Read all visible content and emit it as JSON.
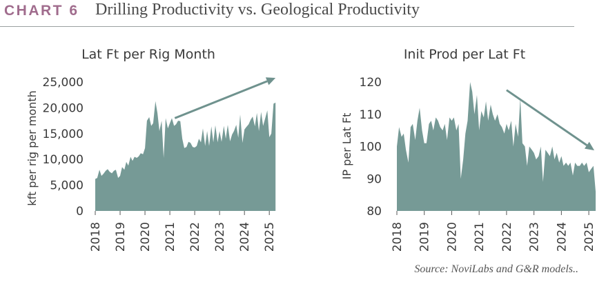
{
  "header": {
    "label": "CHART 6",
    "title": "Drilling Productivity vs. Geological Productivity"
  },
  "source": "Source: NoviLabs and G&R models..",
  "colors": {
    "fill": "#769a96",
    "arrow": "#6f928e",
    "accent": "#a06c8d"
  },
  "chart_data": [
    {
      "type": "area",
      "title": "Lat Ft per Rig Month",
      "ylabel": "kft per rig per month",
      "xlabel": "",
      "ylim": [
        0,
        25000
      ],
      "yticks": [
        0,
        5000,
        10000,
        15000,
        20000,
        25000
      ],
      "ytick_labels": [
        "0",
        "5,000",
        "10,000",
        "15,000",
        "20,000",
        "25,000"
      ],
      "xlim": [
        2018,
        2025.3
      ],
      "xticks": [
        "2018",
        "2019",
        "2020",
        "2021",
        "2022",
        "2023",
        "2024",
        "2025"
      ],
      "trend_arrow": {
        "from": [
          2021.2,
          18000
        ],
        "to": [
          2025.25,
          25800
        ]
      },
      "series": [
        {
          "name": "Lat Ft per Rig Month",
          "x": [
            2018.0,
            2018.08,
            2018.17,
            2018.25,
            2018.33,
            2018.42,
            2018.5,
            2018.58,
            2018.67,
            2018.75,
            2018.83,
            2018.92,
            2019.0,
            2019.08,
            2019.17,
            2019.25,
            2019.33,
            2019.42,
            2019.5,
            2019.58,
            2019.67,
            2019.75,
            2019.83,
            2019.92,
            2020.0,
            2020.08,
            2020.17,
            2020.25,
            2020.33,
            2020.42,
            2020.5,
            2020.58,
            2020.67,
            2020.75,
            2020.83,
            2020.92,
            2021.0,
            2021.08,
            2021.17,
            2021.25,
            2021.33,
            2021.42,
            2021.5,
            2021.58,
            2021.67,
            2021.75,
            2021.83,
            2021.92,
            2022.0,
            2022.08,
            2022.17,
            2022.25,
            2022.33,
            2022.42,
            2022.5,
            2022.58,
            2022.67,
            2022.75,
            2022.83,
            2022.92,
            2023.0,
            2023.08,
            2023.17,
            2023.25,
            2023.33,
            2023.42,
            2023.5,
            2023.58,
            2023.67,
            2023.75,
            2023.83,
            2023.92,
            2024.0,
            2024.08,
            2024.17,
            2024.25,
            2024.33,
            2024.42,
            2024.5,
            2024.58,
            2024.67,
            2024.75,
            2024.83,
            2024.92,
            2025.0,
            2025.08,
            2025.17,
            2025.25
          ],
          "values": [
            6200,
            6400,
            8000,
            6800,
            7200,
            7800,
            8100,
            7600,
            7300,
            7800,
            8000,
            6400,
            6800,
            8500,
            8000,
            9500,
            8800,
            10500,
            9700,
            10500,
            10300,
            10600,
            11200,
            11000,
            12200,
            17500,
            18200,
            16500,
            17000,
            21300,
            19000,
            15500,
            17500,
            10300,
            18000,
            16000,
            17000,
            18000,
            16500,
            16800,
            17500,
            17400,
            14000,
            12200,
            12400,
            13400,
            13200,
            12400,
            12300,
            12600,
            14000,
            13300,
            16000,
            12600,
            15500,
            12600,
            16400,
            13300,
            16600,
            13300,
            15500,
            13400,
            16500,
            14000,
            16700,
            13500,
            14800,
            15500,
            16700,
            14200,
            18700,
            13200,
            15800,
            16300,
            16800,
            17700,
            18300,
            16400,
            19000,
            15500,
            19200,
            16500,
            17900,
            19500,
            14300,
            15000,
            20800,
            21000
          ]
        }
      ]
    },
    {
      "type": "area",
      "title": "Init Prod per Lat Ft",
      "ylabel": "IP per Lat Ft",
      "xlabel": "",
      "ylim": [
        80,
        120
      ],
      "yticks": [
        80,
        90,
        100,
        110,
        120
      ],
      "ytick_labels": [
        "80",
        "90",
        "100",
        "110",
        "120"
      ],
      "xlim": [
        2018,
        2025.3
      ],
      "xticks": [
        "2018",
        "2019",
        "2020",
        "2021",
        "2022",
        "2023",
        "2024",
        "2025"
      ],
      "trend_arrow": {
        "from": [
          2022.0,
          117.5
        ],
        "to": [
          2025.2,
          98.8
        ]
      },
      "series": [
        {
          "name": "Init Prod per Lat Ft",
          "x": [
            2018.0,
            2018.08,
            2018.17,
            2018.25,
            2018.33,
            2018.42,
            2018.5,
            2018.58,
            2018.67,
            2018.75,
            2018.83,
            2018.92,
            2019.0,
            2019.08,
            2019.17,
            2019.25,
            2019.33,
            2019.42,
            2019.5,
            2019.58,
            2019.67,
            2019.75,
            2019.83,
            2019.92,
            2020.0,
            2020.08,
            2020.17,
            2020.25,
            2020.33,
            2020.42,
            2020.5,
            2020.58,
            2020.67,
            2020.75,
            2020.83,
            2020.92,
            2021.0,
            2021.08,
            2021.17,
            2021.25,
            2021.33,
            2021.42,
            2021.5,
            2021.58,
            2021.67,
            2021.75,
            2021.83,
            2021.92,
            2022.0,
            2022.08,
            2022.17,
            2022.25,
            2022.33,
            2022.42,
            2022.5,
            2022.58,
            2022.67,
            2022.75,
            2022.83,
            2022.92,
            2023.0,
            2023.08,
            2023.17,
            2023.25,
            2023.33,
            2023.42,
            2023.5,
            2023.58,
            2023.67,
            2023.75,
            2023.83,
            2023.92,
            2024.0,
            2024.08,
            2024.17,
            2024.25,
            2024.33,
            2024.42,
            2024.5,
            2024.58,
            2024.67,
            2024.75,
            2024.83,
            2024.92,
            2025.0,
            2025.08,
            2025.17,
            2025.25
          ],
          "values": [
            100,
            106,
            103,
            104,
            99,
            95,
            106,
            107,
            102,
            108,
            112,
            105,
            101,
            101,
            107,
            108,
            105,
            109,
            108,
            106,
            105,
            107,
            102,
            109,
            108,
            109,
            105,
            107,
            90,
            96,
            104,
            108,
            120,
            117,
            110,
            116,
            105,
            111,
            109,
            114,
            108,
            113,
            110,
            108,
            110,
            107,
            106,
            104,
            107,
            105,
            108,
            100,
            107,
            103,
            115,
            101,
            100,
            94,
            100,
            99,
            98,
            96,
            97,
            100,
            89,
            99,
            98,
            97,
            100,
            96,
            98,
            95,
            97,
            94,
            95,
            94,
            95,
            91,
            95,
            94,
            94,
            95,
            94,
            95,
            92,
            93,
            94,
            86
          ]
        }
      ]
    }
  ]
}
